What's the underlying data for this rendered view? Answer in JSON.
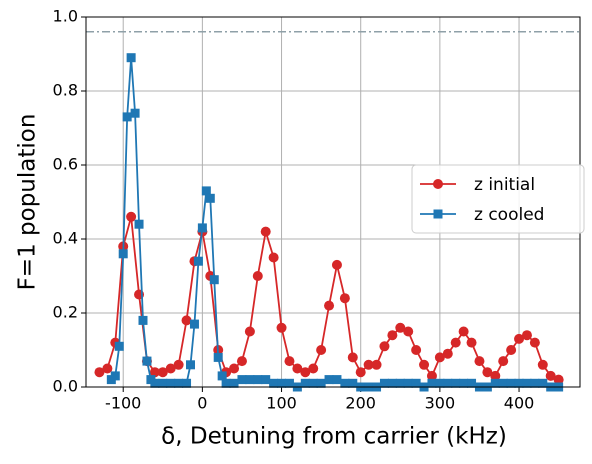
{
  "chart_data": {
    "type": "line",
    "xlabel": "δ, Detuning from carrier (kHz)",
    "ylabel": "F=1 population",
    "xlim": [
      -147,
      477
    ],
    "ylim": [
      0,
      1.0
    ],
    "xticks": [
      -100,
      0,
      100,
      200,
      300,
      400
    ],
    "yticks": [
      {
        "value": 0,
        "label": "0.0"
      },
      {
        "value": 0.2,
        "label": "0.2"
      },
      {
        "value": 0.4,
        "label": "0.4"
      },
      {
        "value": 0.6,
        "label": "0.6"
      },
      {
        "value": 0.8,
        "label": "0.8"
      },
      {
        "value": 1.0,
        "label": "1.0"
      }
    ],
    "grid": true,
    "legend": "right",
    "hline": {
      "y": 0.96,
      "color": "#8fa0a8"
    },
    "series": [
      {
        "name": "z initial",
        "color": "#d62728",
        "marker": "circle",
        "x": [
          -130,
          -120,
          -110,
          -100,
          -90,
          -80,
          -70,
          -60,
          -50,
          -40,
          -30,
          -20,
          -10,
          0,
          10,
          20,
          30,
          40,
          50,
          60,
          70,
          80,
          90,
          100,
          110,
          120,
          130,
          140,
          150,
          160,
          170,
          180,
          190,
          200,
          210,
          220,
          230,
          240,
          250,
          260,
          270,
          280,
          290,
          300,
          310,
          320,
          330,
          340,
          350,
          360,
          370,
          380,
          390,
          400,
          410,
          420,
          430,
          440,
          450
        ],
        "values": [
          0.04,
          0.05,
          0.12,
          0.38,
          0.46,
          0.25,
          0.07,
          0.04,
          0.04,
          0.05,
          0.06,
          0.18,
          0.34,
          0.42,
          0.3,
          0.1,
          0.04,
          0.05,
          0.07,
          0.15,
          0.3,
          0.42,
          0.35,
          0.16,
          0.07,
          0.05,
          0.04,
          0.05,
          0.1,
          0.22,
          0.33,
          0.24,
          0.08,
          0.04,
          0.06,
          0.06,
          0.11,
          0.14,
          0.16,
          0.15,
          0.1,
          0.06,
          0.03,
          0.08,
          0.09,
          0.12,
          0.15,
          0.12,
          0.07,
          0.04,
          0.03,
          0.07,
          0.1,
          0.13,
          0.14,
          0.12,
          0.06,
          0.03,
          0.02
        ]
      },
      {
        "name": "z cooled",
        "color": "#1f77b4",
        "marker": "square",
        "x": [
          -115,
          -110,
          -105,
          -100,
          -95,
          -90,
          -85,
          -80,
          -75,
          -70,
          -65,
          -60,
          -50,
          -40,
          -30,
          -20,
          -15,
          -10,
          -5,
          0,
          5,
          10,
          15,
          20,
          25,
          30,
          40,
          50,
          60,
          70,
          80,
          90,
          100,
          110,
          120,
          130,
          140,
          150,
          160,
          170,
          180,
          190,
          200,
          210,
          220,
          230,
          240,
          250,
          260,
          270,
          280,
          290,
          300,
          310,
          320,
          330,
          340,
          350,
          360,
          370,
          380,
          390,
          400,
          410,
          420,
          430,
          440,
          450
        ],
        "values": [
          0.02,
          0.03,
          0.11,
          0.36,
          0.73,
          0.89,
          0.74,
          0.44,
          0.18,
          0.07,
          0.02,
          0.01,
          0.01,
          0.01,
          0.01,
          0.01,
          0.06,
          0.17,
          0.34,
          0.43,
          0.53,
          0.51,
          0.29,
          0.08,
          0.03,
          0.01,
          0.01,
          0.02,
          0.02,
          0.02,
          0.02,
          0.01,
          0.01,
          0.01,
          0.0,
          0.01,
          0.01,
          0.01,
          0.02,
          0.02,
          0.01,
          0.01,
          0.0,
          0.0,
          0.0,
          0.01,
          0.01,
          0.01,
          0.01,
          0.01,
          0.0,
          0.01,
          0.01,
          0.01,
          0.01,
          0.01,
          0.01,
          0.0,
          0.0,
          0.01,
          0.01,
          0.01,
          0.01,
          0.01,
          0.01,
          0.01,
          0.0,
          0.0
        ]
      }
    ]
  }
}
